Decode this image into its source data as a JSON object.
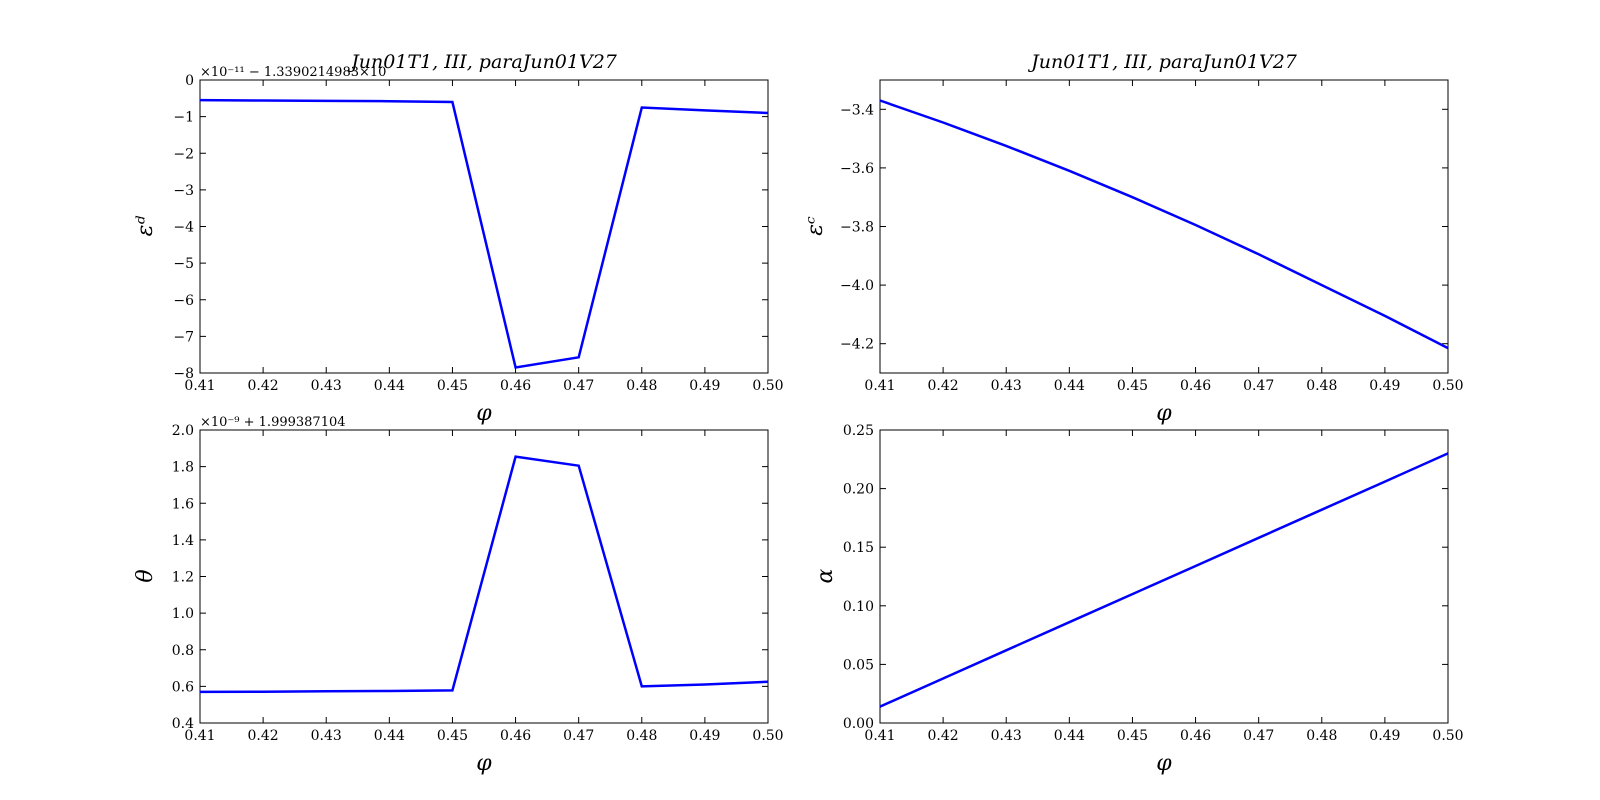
{
  "chart_data": [
    {
      "id": "top-left",
      "type": "line",
      "title": "Jun01T1, III, paraJun01V27",
      "xlabel": "φ",
      "ylabel": "εᵈ",
      "offset_text": "×10⁻¹¹ − 1.33902149​83×10",
      "xlim": [
        0.41,
        0.5
      ],
      "ylim": [
        -8,
        0
      ],
      "xticks": [
        "0.41",
        "0.42",
        "0.43",
        "0.44",
        "0.45",
        "0.46",
        "0.47",
        "0.48",
        "0.49",
        "0.50"
      ],
      "yticks": [
        "−8",
        "−7",
        "−6",
        "−5",
        "−4",
        "−3",
        "−2",
        "−1",
        "0"
      ],
      "series": [
        {
          "color": "#0000ff",
          "x": [
            0.41,
            0.42,
            0.43,
            0.44,
            0.45,
            0.46,
            0.47,
            0.48,
            0.49,
            0.5
          ],
          "y": [
            -0.55,
            -0.56,
            -0.57,
            -0.58,
            -0.6,
            -7.85,
            -7.57,
            -0.75,
            -0.83,
            -0.9
          ]
        }
      ]
    },
    {
      "id": "top-right",
      "type": "line",
      "title": "Jun01T1, III, paraJun01V27",
      "xlabel": "φ",
      "ylabel": "εᶜ",
      "offset_text": "",
      "xlim": [
        0.41,
        0.5
      ],
      "ylim": [
        -4.3,
        -3.3
      ],
      "xticks": [
        "0.41",
        "0.42",
        "0.43",
        "0.44",
        "0.45",
        "0.46",
        "0.47",
        "0.48",
        "0.49",
        "0.50"
      ],
      "yticks": [
        "−4.2",
        "−4.0",
        "−3.8",
        "−3.6",
        "−3.4"
      ],
      "series": [
        {
          "color": "#0000ff",
          "x": [
            0.41,
            0.42,
            0.43,
            0.44,
            0.45,
            0.46,
            0.47,
            0.48,
            0.49,
            0.5
          ],
          "y": [
            -3.37,
            -3.445,
            -3.525,
            -3.61,
            -3.7,
            -3.795,
            -3.895,
            -4.0,
            -4.105,
            -4.215
          ]
        }
      ]
    },
    {
      "id": "bottom-left",
      "type": "line",
      "title": "",
      "xlabel": "φ",
      "ylabel": "θ",
      "offset_text": "×10⁻⁹ + 1.999387104",
      "xlim": [
        0.41,
        0.5
      ],
      "ylim": [
        0.4,
        2.0
      ],
      "xticks": [
        "0.41",
        "0.42",
        "0.43",
        "0.44",
        "0.45",
        "0.46",
        "0.47",
        "0.48",
        "0.49",
        "0.50"
      ],
      "yticks": [
        "0.4",
        "0.6",
        "0.8",
        "1.0",
        "1.2",
        "1.4",
        "1.6",
        "1.8",
        "2.0"
      ],
      "series": [
        {
          "color": "#0000ff",
          "x": [
            0.41,
            0.42,
            0.43,
            0.44,
            0.45,
            0.46,
            0.47,
            0.48,
            0.49,
            0.5
          ],
          "y": [
            0.57,
            0.571,
            0.573,
            0.575,
            0.578,
            1.855,
            1.805,
            0.6,
            0.61,
            0.625
          ]
        }
      ]
    },
    {
      "id": "bottom-right",
      "type": "line",
      "title": "",
      "xlabel": "φ",
      "ylabel": "α",
      "offset_text": "",
      "xlim": [
        0.41,
        0.5
      ],
      "ylim": [
        0.0,
        0.25
      ],
      "xticks": [
        "0.41",
        "0.42",
        "0.43",
        "0.44",
        "0.45",
        "0.46",
        "0.47",
        "0.48",
        "0.49",
        "0.50"
      ],
      "yticks": [
        "0.00",
        "0.05",
        "0.10",
        "0.15",
        "0.20",
        "0.25"
      ],
      "series": [
        {
          "color": "#0000ff",
          "x": [
            0.41,
            0.42,
            0.43,
            0.44,
            0.45,
            0.46,
            0.47,
            0.48,
            0.49,
            0.5
          ],
          "y": [
            0.014,
            0.038,
            0.062,
            0.086,
            0.11,
            0.134,
            0.158,
            0.182,
            0.206,
            0.23
          ]
        }
      ]
    }
  ]
}
